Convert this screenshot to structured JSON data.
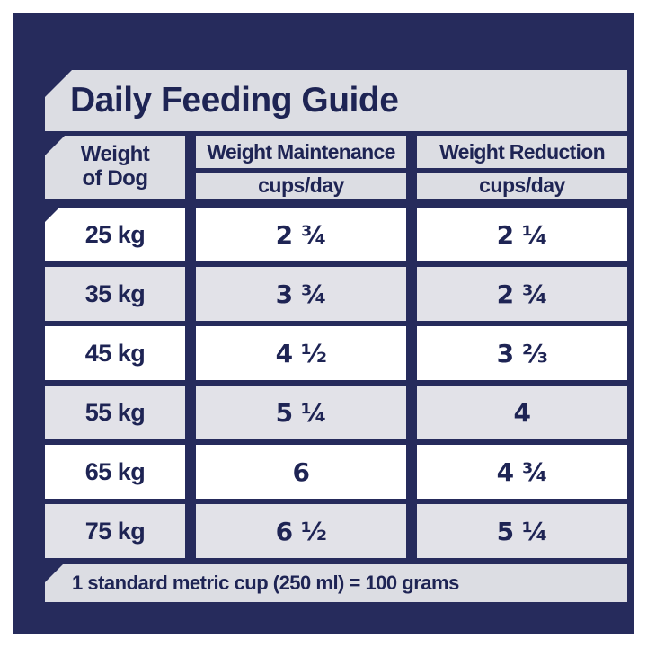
{
  "title": "Daily Feeding Guide",
  "table": {
    "weight_column_header": "Weight\nof Dog",
    "maintenance_header": "Weight Maintenance",
    "maintenance_units": "cups/day",
    "reduction_header": "Weight Reduction",
    "reduction_units": "cups/day",
    "rows": [
      {
        "weight": "25 kg",
        "maintenance": "2 ¾",
        "reduction": "2 ¼"
      },
      {
        "weight": "35 kg",
        "maintenance": "3 ¾",
        "reduction": "2 ¾"
      },
      {
        "weight": "45 kg",
        "maintenance": "4 ½",
        "reduction": "3 ⅔"
      },
      {
        "weight": "55 kg",
        "maintenance": "5 ¼",
        "reduction": "4"
      },
      {
        "weight": "65 kg",
        "maintenance": "6",
        "reduction": "4 ¾"
      },
      {
        "weight": "75 kg",
        "maintenance": "6 ½",
        "reduction": "5 ¼"
      }
    ]
  },
  "footnote": "1 standard metric cup (250 ml) = 100 grams",
  "colors": {
    "navy": "#262b5c",
    "ink": "#1e2454",
    "panel-gray": "#dcdde3",
    "row-alt": "#e2e2e8",
    "row-white": "#ffffff",
    "frame-white": "#ffffff"
  }
}
